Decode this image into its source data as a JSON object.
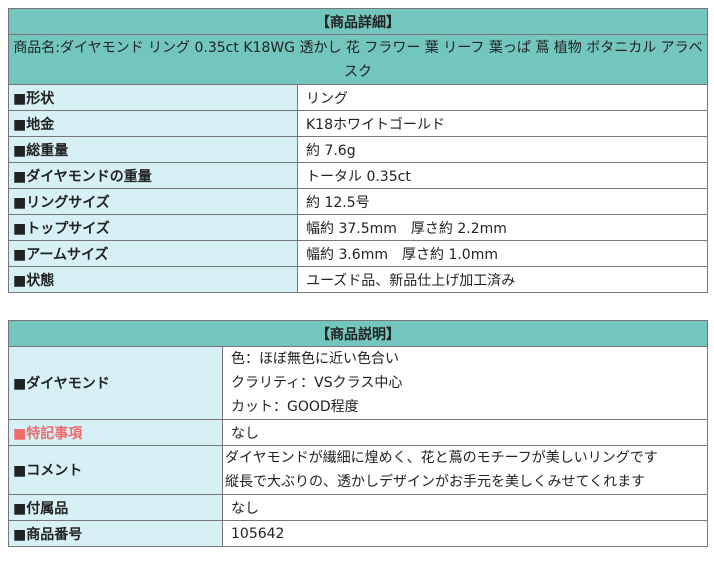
{
  "details": {
    "title": "【商品詳細】",
    "product_name": "商品名:ダイヤモンド リング 0.35ct K18WG 透かし 花 フラワー 葉 リーフ 葉っぱ 蔦 植物 ボタニカル アラベスク",
    "rows": [
      {
        "label": "■形状",
        "value": "リング"
      },
      {
        "label": "■地金",
        "value": "K18ホワイトゴールド"
      },
      {
        "label": "■総重量",
        "value": "約 7.6g"
      },
      {
        "label": "■ダイヤモンドの重量",
        "value": "トータル 0.35ct"
      },
      {
        "label": "■リングサイズ",
        "value": "約 12.5号"
      },
      {
        "label": "■トップサイズ",
        "value": "幅約 37.5mm　厚さ約 2.2mm"
      },
      {
        "label": "■アームサイズ",
        "value": "幅約 3.6mm　厚さ約 1.0mm"
      },
      {
        "label": "■状態",
        "value": "ユーズド品、新品仕上げ加工済み"
      }
    ]
  },
  "description": {
    "title": "【商品説明】",
    "diamond": {
      "label": "■ダイヤモンド",
      "lines": [
        "色：ほぼ無色に近い色合い",
        "クラリティ：VSクラス中心",
        "カット：GOOD程度"
      ]
    },
    "notes": {
      "label": "■特記事項",
      "value": "なし",
      "label_color": "#f06a6a"
    },
    "comment": {
      "label": "■コメント",
      "lines": [
        "ダイヤモンドが繊細に煌めく、花と蔦のモチーフが美しいリングです",
        "縦長で大ぶりの、透かしデザインがお手元を美しくみせてくれます"
      ]
    },
    "accessories": {
      "label": "■付属品",
      "value": "なし"
    },
    "number": {
      "label": "■商品番号",
      "value": "105642"
    }
  },
  "colors": {
    "header": "#72c6bd",
    "label_bg": "#d6f0f6"
  }
}
